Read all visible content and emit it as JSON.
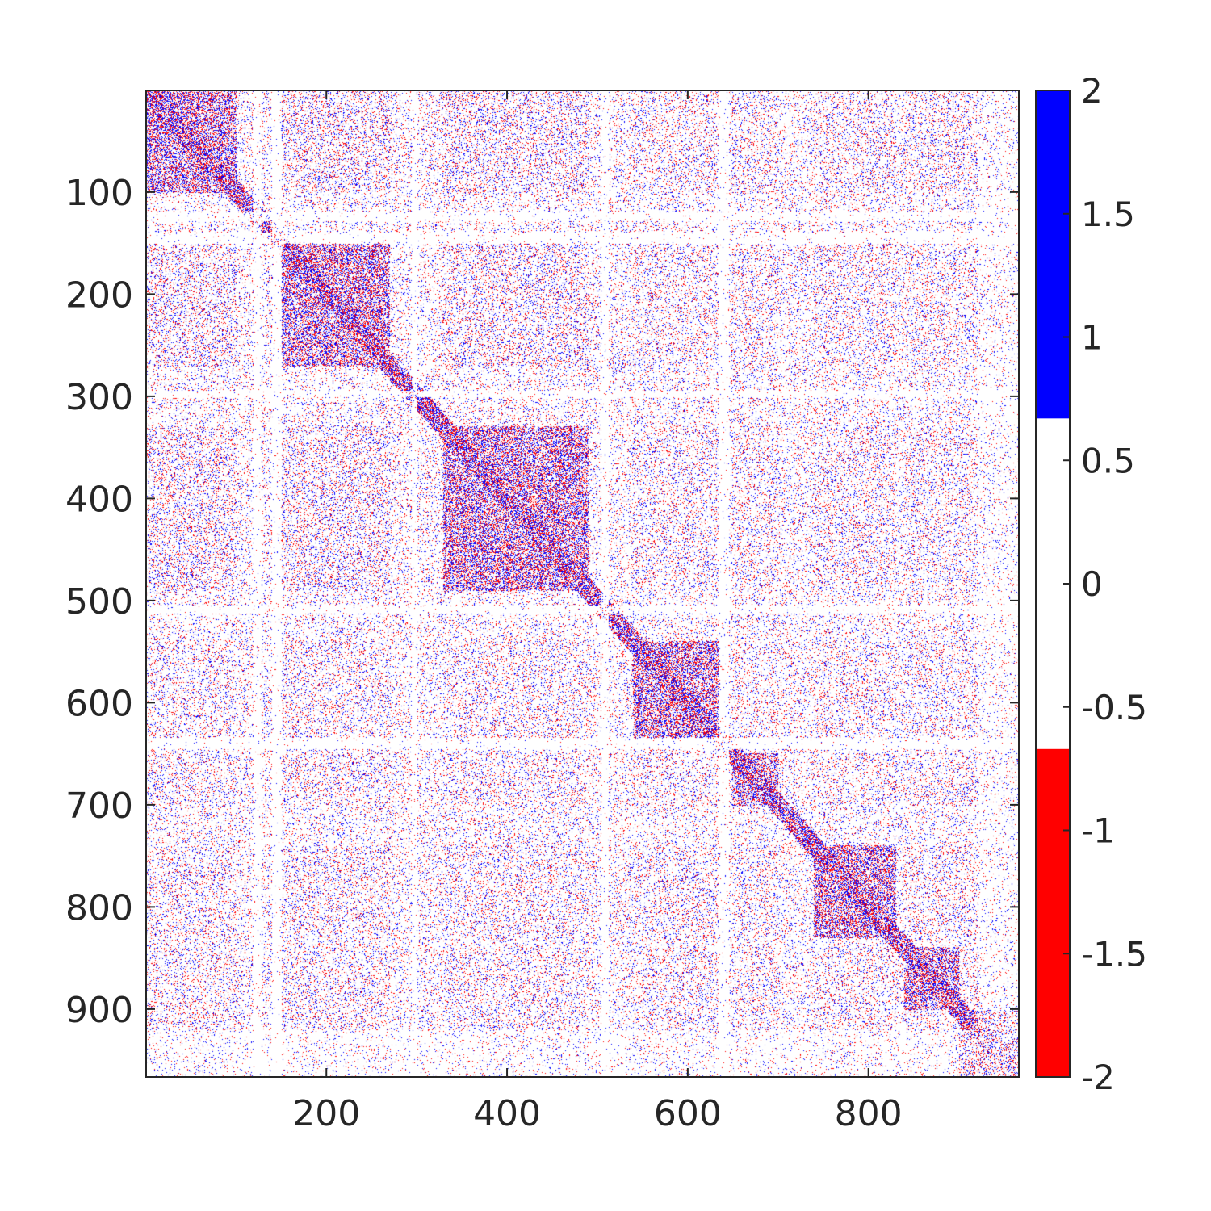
{
  "chart_data": {
    "type": "heatmap",
    "title": "",
    "xlabel": "",
    "ylabel": "",
    "matrix_size": 966,
    "xlim": [
      1,
      966
    ],
    "ylim": [
      1,
      966
    ],
    "y_axis_direction": "reversed",
    "x_ticks": [
      200,
      400,
      600,
      800
    ],
    "y_ticks": [
      100,
      200,
      300,
      400,
      500,
      600,
      700,
      800,
      900
    ],
    "grid": false,
    "colorbar": {
      "location": "right",
      "limits": [
        -2,
        2
      ],
      "ticks": [
        2,
        1.5,
        1,
        0.5,
        0,
        -0.5,
        -1,
        -1.5,
        -2
      ],
      "tick_labels": [
        "2",
        "1.5",
        "1",
        "0.5",
        "0",
        "-0.5",
        "-1",
        "-1.5",
        "-2"
      ],
      "bins": [
        {
          "from": -2,
          "to": -0.67,
          "color": "#ff0000"
        },
        {
          "from": -0.67,
          "to": 0.67,
          "color": "#ffffff"
        },
        {
          "from": 0.67,
          "to": 2,
          "color": "#0000ff"
        }
      ]
    },
    "values_present": [
      -1,
      0,
      1
    ],
    "dense_diagonal_blocks": [
      {
        "start": 1,
        "end": 100
      },
      {
        "start": 150,
        "end": 270
      },
      {
        "start": 330,
        "end": 490
      },
      {
        "start": 540,
        "end": 635
      },
      {
        "start": 650,
        "end": 700
      },
      {
        "start": 740,
        "end": 830
      },
      {
        "start": 840,
        "end": 900
      },
      {
        "start": 900,
        "end": 966
      }
    ],
    "colors": {
      "positive": "#0000ff",
      "negative": "#ff0000",
      "zero": "#ffffff"
    }
  }
}
